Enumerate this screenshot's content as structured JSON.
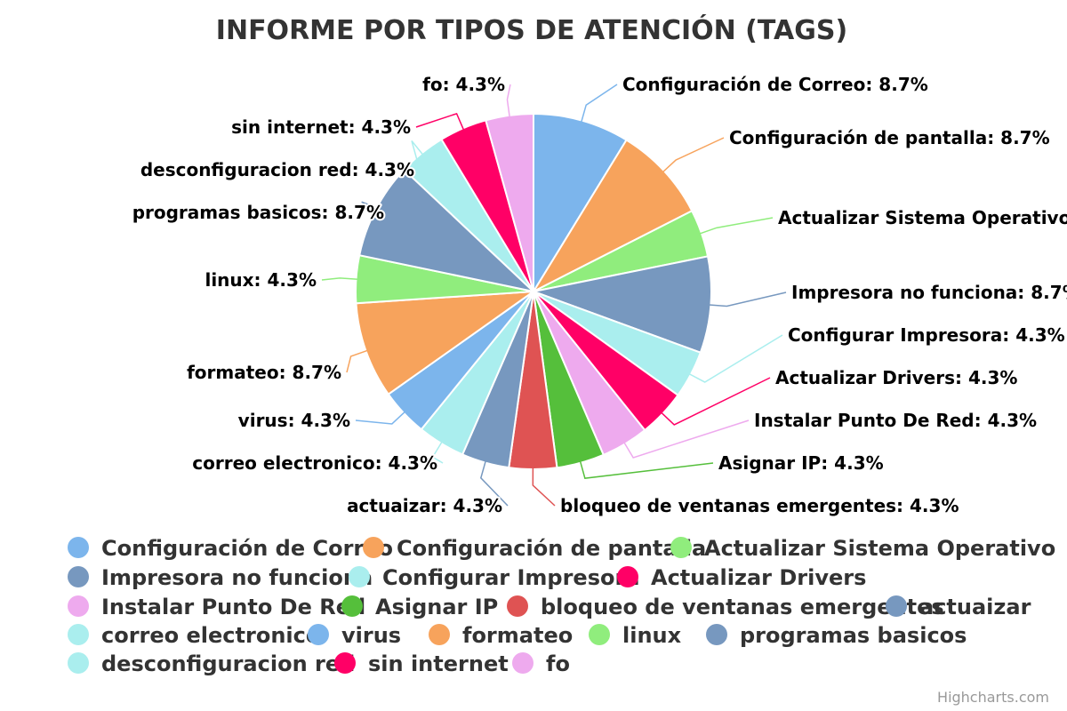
{
  "chart_data": {
    "type": "pie",
    "title": "INFORME POR TIPOS DE ATENCIÓN (TAGS)",
    "credits": "Highcharts.com",
    "label_suffix": "%",
    "slices": [
      {
        "name": "Configuración de Correo",
        "value": 8.7,
        "color": "#7cb5ec"
      },
      {
        "name": "Configuración de pantalla",
        "value": 8.7,
        "color": "#f7a35c"
      },
      {
        "name": "Actualizar Sistema Operativo",
        "value": 4.3,
        "color": "#90ed7d"
      },
      {
        "name": "Impresora no funciona",
        "value": 8.7,
        "color": "#7798bf"
      },
      {
        "name": "Configurar Impresora",
        "value": 4.3,
        "color": "#aaeeee"
      },
      {
        "name": "Actualizar Drivers",
        "value": 4.3,
        "color": "#ff0066"
      },
      {
        "name": "Instalar Punto De Red",
        "value": 4.3,
        "color": "#eeaaee"
      },
      {
        "name": "Asignar IP",
        "value": 4.3,
        "color": "#55bf3b"
      },
      {
        "name": "bloqueo de ventanas emergentes",
        "value": 4.3,
        "color": "#df5353"
      },
      {
        "name": "actuaizar",
        "value": 4.3,
        "color": "#7798bf"
      },
      {
        "name": "correo electronico",
        "value": 4.3,
        "color": "#aaeeee"
      },
      {
        "name": "virus",
        "value": 4.3,
        "color": "#7cb5ec"
      },
      {
        "name": "formateo",
        "value": 8.7,
        "color": "#f7a35c"
      },
      {
        "name": "linux",
        "value": 4.3,
        "color": "#90ed7d"
      },
      {
        "name": "programas basicos",
        "value": 8.7,
        "color": "#7798bf"
      },
      {
        "name": "desconfiguracion red",
        "value": 4.3,
        "color": "#aaeeee"
      },
      {
        "name": "sin internet",
        "value": 4.3,
        "color": "#ff0066"
      },
      {
        "name": "fo",
        "value": 4.3,
        "color": "#eeaaee"
      }
    ],
    "legend": {
      "placement": "bottom",
      "layout": "horizontal"
    }
  }
}
